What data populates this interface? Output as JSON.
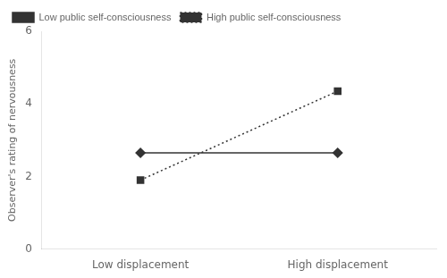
{
  "chart_data": {
    "type": "line",
    "categories": [
      "Low displacement",
      "High displacement"
    ],
    "series": [
      {
        "name": "Low public self-consciousness",
        "color": "#333333",
        "marker": "diamond",
        "line_style": "solid",
        "values": [
          2.65,
          2.65
        ]
      },
      {
        "name": "High public self-consciousness",
        "color": "#333333",
        "marker": "square",
        "line_style": "dotted",
        "values": [
          1.9,
          4.35
        ]
      }
    ],
    "y_label": "Observer's rating of nervousness",
    "ylim": [
      0,
      6
    ],
    "yticks": [
      0,
      2,
      4,
      6
    ],
    "grid": false,
    "legend": "upper left"
  }
}
